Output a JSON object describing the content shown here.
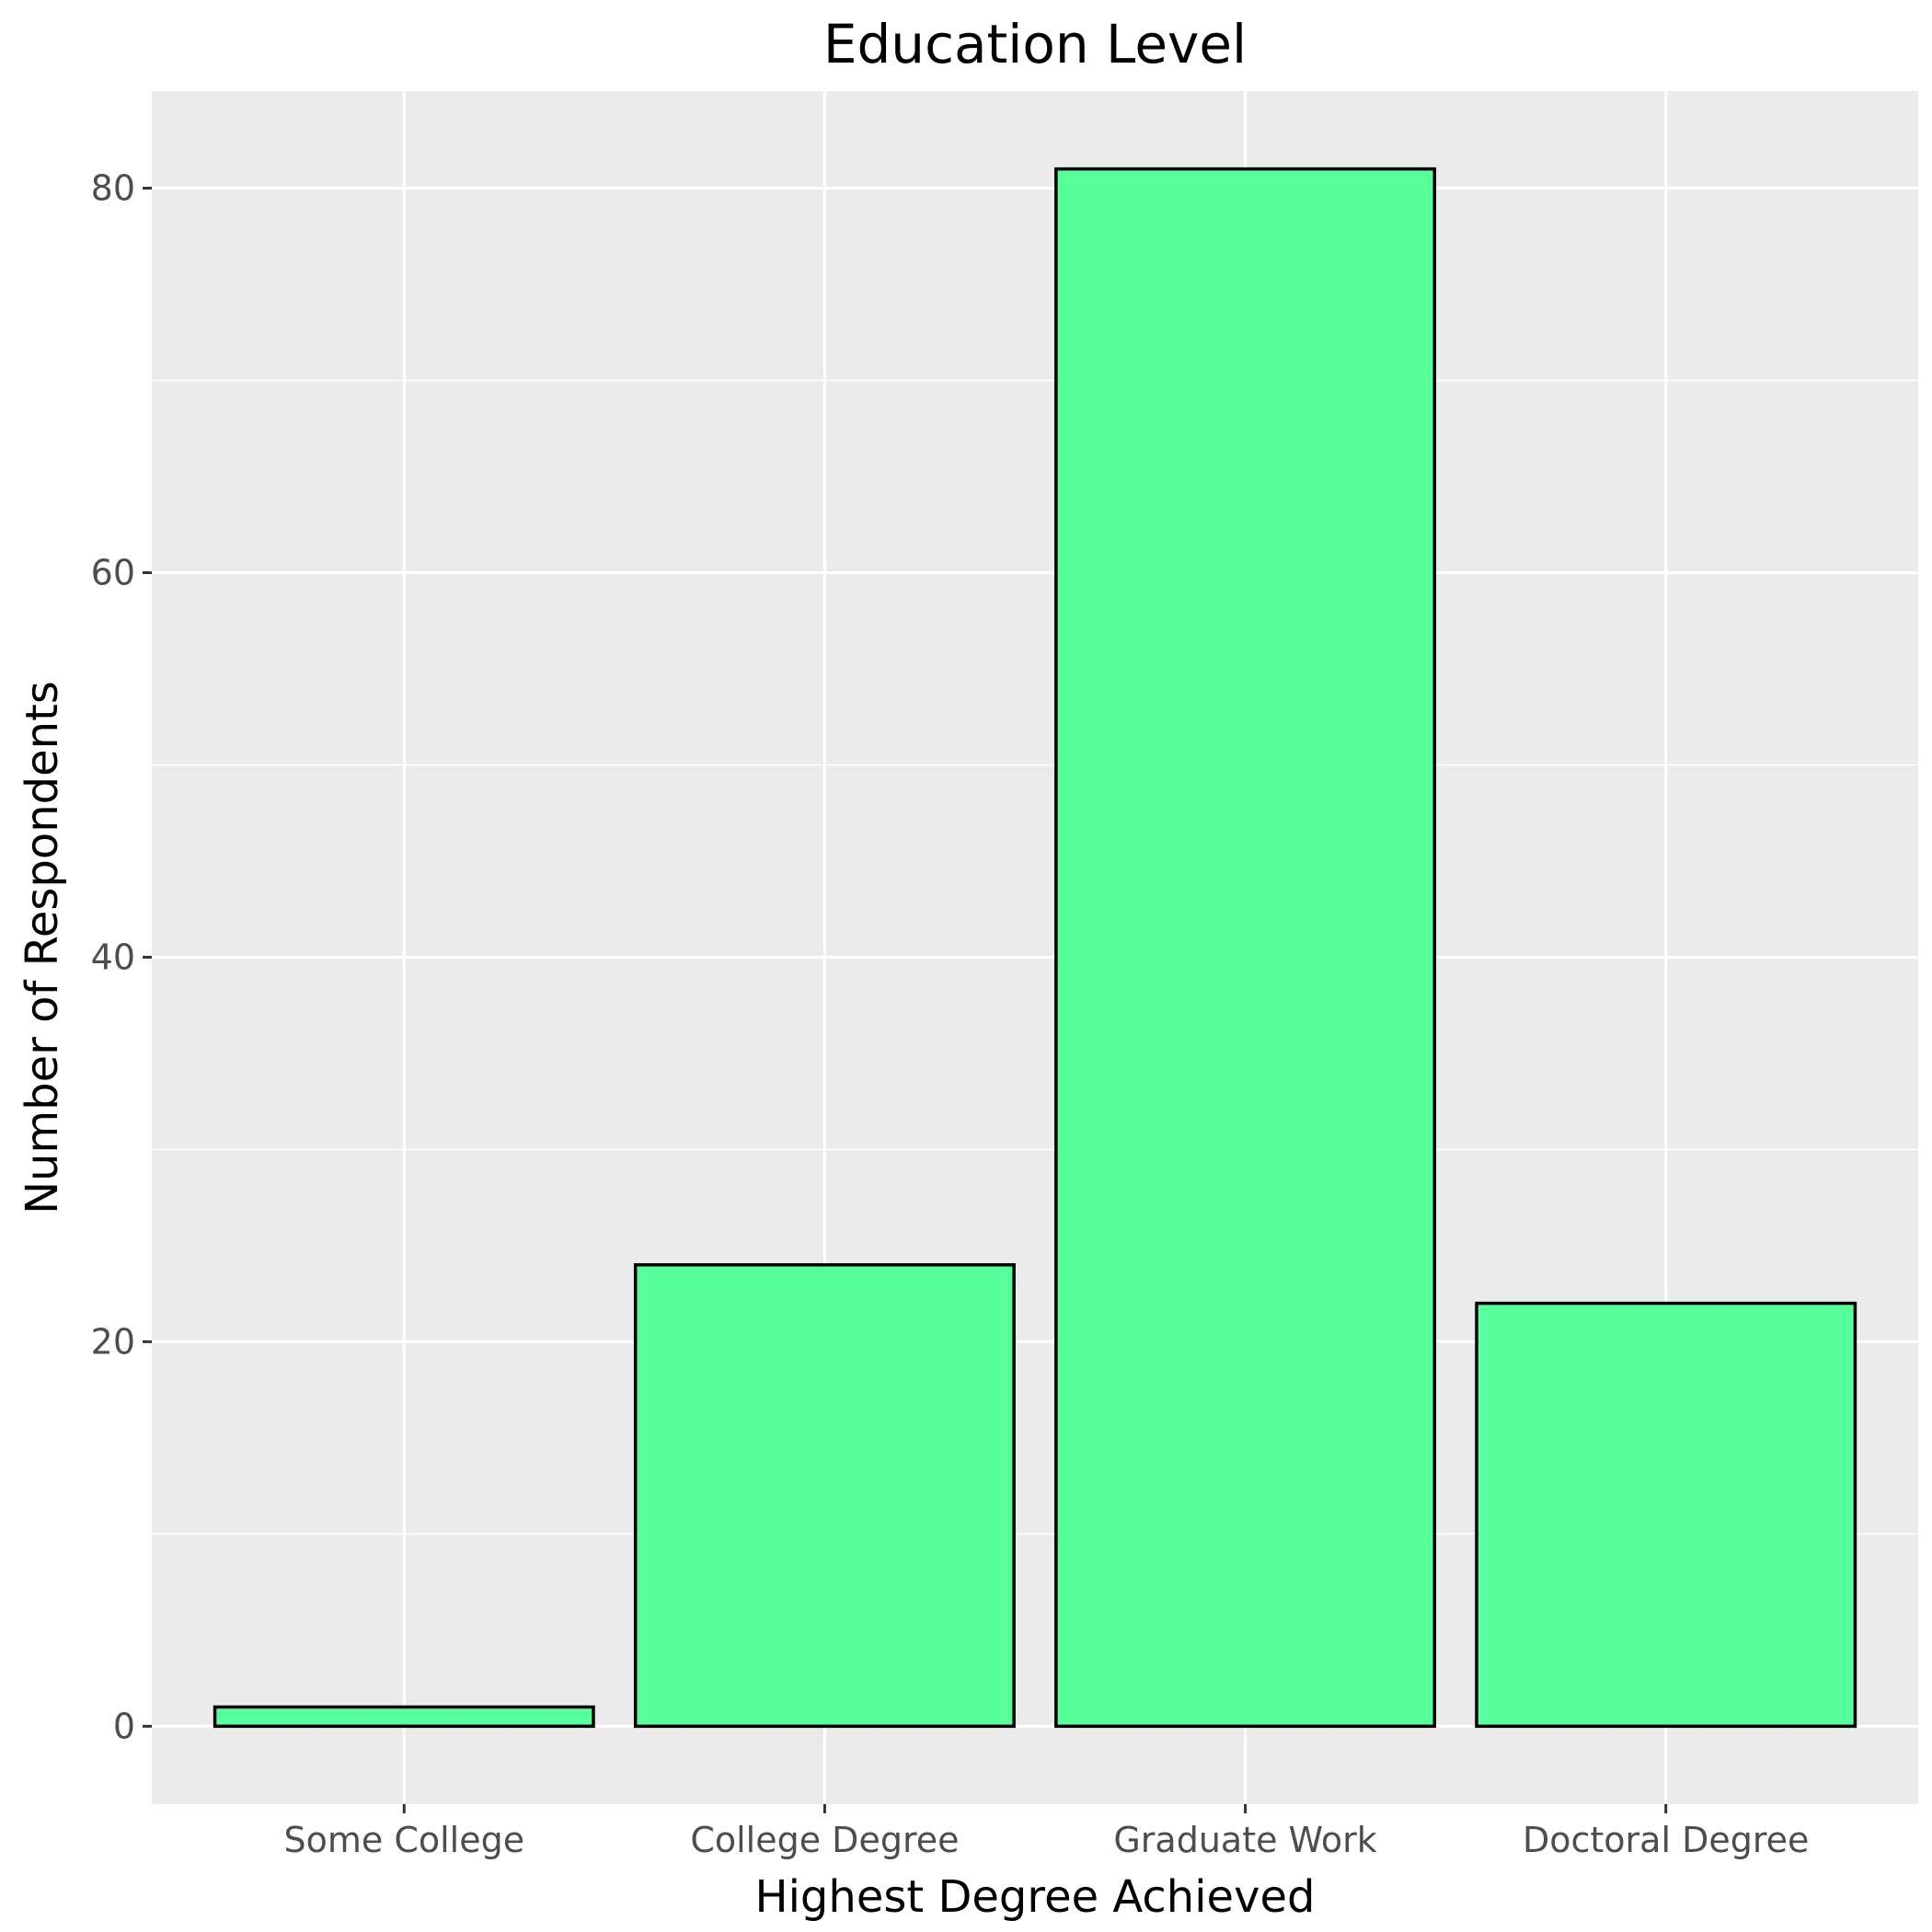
{
  "chart_data": {
    "type": "bar",
    "title": "Education Level",
    "xlabel": "Highest Degree Achieved",
    "ylabel": "Number of Respondents",
    "categories": [
      "Some College",
      "College Degree",
      "Graduate Work",
      "Doctoral Degree"
    ],
    "values": [
      1,
      24,
      81,
      22
    ],
    "ylim": [
      -4.05,
      85.05
    ],
    "yticks": [
      0,
      20,
      40,
      60,
      80
    ],
    "grid": true,
    "legend": "none",
    "colors": {
      "bar_fill": "#57FF9A",
      "bar_outline": "#000000",
      "panel_background": "#EBEBEB",
      "grid": "#FFFFFF",
      "tick_text": "#4D4D4D"
    }
  }
}
